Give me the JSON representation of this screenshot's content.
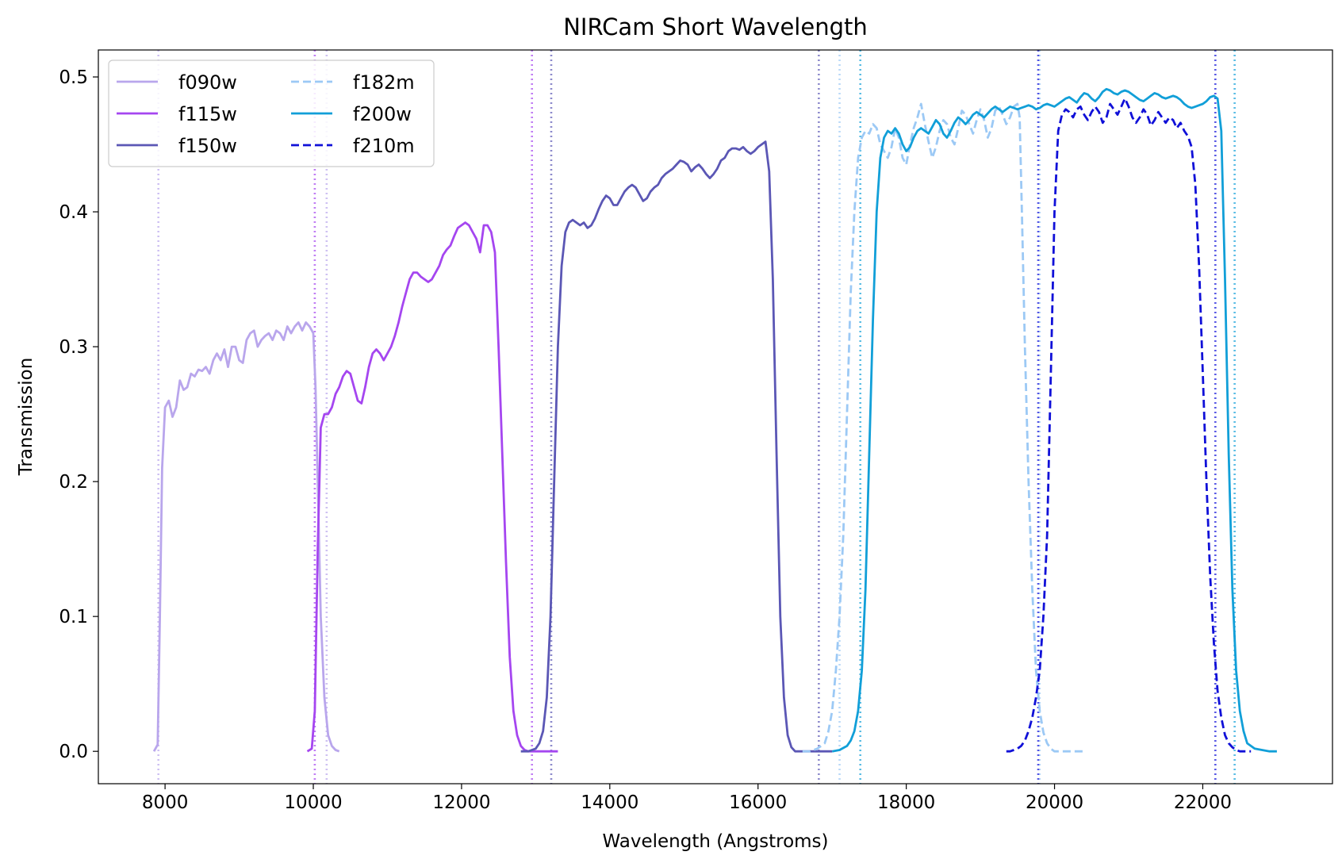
{
  "chart_data": {
    "type": "line",
    "title": "NIRCam Short Wavelength",
    "xlabel": "Wavelength (Angstroms)",
    "ylabel": "Transmission",
    "xlim": [
      7100,
      23750
    ],
    "ylim": [
      -0.024,
      0.52
    ],
    "xticks": [
      8000,
      10000,
      12000,
      14000,
      16000,
      18000,
      20000,
      22000
    ],
    "yticks": [
      0.0,
      0.1,
      0.2,
      0.3,
      0.4,
      0.5
    ],
    "xtick_labels": [
      "8000",
      "10000",
      "12000",
      "14000",
      "16000",
      "18000",
      "20000",
      "22000"
    ],
    "ytick_labels": [
      "0.0",
      "0.1",
      "0.2",
      "0.3",
      "0.4",
      "0.5"
    ],
    "grid": false,
    "legend": {
      "placement": "upper-left",
      "columns": 2
    },
    "series": [
      {
        "name": "f090w",
        "color": "#b9a6ec",
        "dash": "solid",
        "x": [
          7850,
          7900,
          7930,
          7960,
          8000,
          8050,
          8100,
          8150,
          8200,
          8250,
          8300,
          8350,
          8400,
          8450,
          8500,
          8550,
          8600,
          8650,
          8700,
          8750,
          8800,
          8850,
          8900,
          8950,
          9000,
          9050,
          9100,
          9150,
          9200,
          9250,
          9300,
          9350,
          9400,
          9450,
          9500,
          9550,
          9600,
          9650,
          9700,
          9750,
          9800,
          9850,
          9900,
          9950,
          10000,
          10030,
          10060,
          10100,
          10150,
          10200,
          10250,
          10300,
          10350
        ],
        "y": [
          0.0,
          0.005,
          0.1,
          0.21,
          0.255,
          0.26,
          0.248,
          0.255,
          0.275,
          0.268,
          0.27,
          0.28,
          0.278,
          0.283,
          0.282,
          0.285,
          0.28,
          0.29,
          0.295,
          0.29,
          0.298,
          0.285,
          0.3,
          0.3,
          0.29,
          0.288,
          0.305,
          0.31,
          0.312,
          0.3,
          0.305,
          0.308,
          0.31,
          0.305,
          0.312,
          0.31,
          0.305,
          0.315,
          0.31,
          0.315,
          0.318,
          0.312,
          0.318,
          0.315,
          0.31,
          0.27,
          0.2,
          0.1,
          0.04,
          0.012,
          0.004,
          0.001,
          0.0
        ]
      },
      {
        "name": "f115w",
        "color": "#a546f0",
        "dash": "solid",
        "x": [
          9920,
          9980,
          10020,
          10060,
          10100,
          10150,
          10200,
          10250,
          10300,
          10350,
          10400,
          10450,
          10500,
          10550,
          10600,
          10650,
          10700,
          10750,
          10800,
          10850,
          10900,
          10950,
          11000,
          11050,
          11100,
          11150,
          11200,
          11250,
          11300,
          11350,
          11400,
          11450,
          11500,
          11550,
          11600,
          11650,
          11700,
          11750,
          11800,
          11850,
          11900,
          11950,
          12000,
          12050,
          12100,
          12150,
          12200,
          12250,
          12300,
          12350,
          12400,
          12450,
          12500,
          12550,
          12600,
          12650,
          12700,
          12750,
          12800,
          12850,
          12900,
          12950,
          13000,
          13050,
          13100,
          13150,
          13200,
          13250,
          13300
        ],
        "y": [
          0.0,
          0.002,
          0.03,
          0.15,
          0.24,
          0.25,
          0.25,
          0.255,
          0.265,
          0.27,
          0.278,
          0.282,
          0.28,
          0.27,
          0.26,
          0.258,
          0.27,
          0.285,
          0.295,
          0.298,
          0.295,
          0.29,
          0.295,
          0.3,
          0.308,
          0.318,
          0.33,
          0.34,
          0.35,
          0.355,
          0.355,
          0.352,
          0.35,
          0.348,
          0.35,
          0.355,
          0.36,
          0.368,
          0.372,
          0.375,
          0.382,
          0.388,
          0.39,
          0.392,
          0.39,
          0.385,
          0.38,
          0.37,
          0.39,
          0.39,
          0.385,
          0.37,
          0.3,
          0.22,
          0.14,
          0.07,
          0.03,
          0.012,
          0.004,
          0.001,
          0.0,
          0.0,
          0.0,
          0.0,
          0.0,
          0.0,
          0.0,
          0.0,
          0.0
        ]
      },
      {
        "name": "f150w",
        "color": "#5b57b5",
        "dash": "solid",
        "x": [
          12800,
          12900,
          13000,
          13050,
          13100,
          13150,
          13200,
          13250,
          13300,
          13350,
          13400,
          13450,
          13500,
          13550,
          13600,
          13650,
          13700,
          13750,
          13800,
          13850,
          13900,
          13950,
          14000,
          14050,
          14100,
          14150,
          14200,
          14250,
          14300,
          14350,
          14400,
          14450,
          14500,
          14550,
          14600,
          14650,
          14700,
          14750,
          14800,
          14850,
          14900,
          14950,
          15000,
          15050,
          15100,
          15150,
          15200,
          15250,
          15300,
          15350,
          15400,
          15450,
          15500,
          15550,
          15600,
          15650,
          15700,
          15750,
          15800,
          15850,
          15900,
          15950,
          16000,
          16050,
          16100,
          16150,
          16200,
          16250,
          16300,
          16350,
          16400,
          16450,
          16500,
          16530,
          16560,
          16600,
          16650,
          16700,
          16750,
          16800,
          16850,
          16900,
          16950,
          17000
        ],
        "y": [
          0.0,
          0.0,
          0.002,
          0.006,
          0.015,
          0.04,
          0.1,
          0.2,
          0.3,
          0.36,
          0.385,
          0.392,
          0.394,
          0.392,
          0.39,
          0.392,
          0.388,
          0.39,
          0.395,
          0.402,
          0.408,
          0.412,
          0.41,
          0.405,
          0.405,
          0.41,
          0.415,
          0.418,
          0.42,
          0.418,
          0.413,
          0.408,
          0.41,
          0.415,
          0.418,
          0.42,
          0.425,
          0.428,
          0.43,
          0.432,
          0.435,
          0.438,
          0.437,
          0.435,
          0.43,
          0.433,
          0.435,
          0.432,
          0.428,
          0.425,
          0.428,
          0.432,
          0.438,
          0.44,
          0.445,
          0.447,
          0.447,
          0.446,
          0.448,
          0.445,
          0.443,
          0.445,
          0.448,
          0.45,
          0.452,
          0.43,
          0.35,
          0.22,
          0.1,
          0.04,
          0.012,
          0.003,
          0.0,
          0.0,
          0.0,
          0.0,
          0.0,
          0.0,
          0.0,
          0.0,
          0.0,
          0.0,
          0.0,
          0.0
        ]
      },
      {
        "name": "f182m",
        "color": "#9cc9f5",
        "dash": "dashed",
        "x": [
          16600,
          16700,
          16800,
          16900,
          16950,
          17000,
          17050,
          17100,
          17150,
          17200,
          17250,
          17300,
          17350,
          17400,
          17450,
          17500,
          17550,
          17600,
          17650,
          17700,
          17750,
          17800,
          17850,
          17900,
          17950,
          18000,
          18050,
          18100,
          18150,
          18200,
          18250,
          18300,
          18350,
          18400,
          18450,
          18500,
          18550,
          18600,
          18650,
          18700,
          18750,
          18800,
          18850,
          18900,
          18950,
          19000,
          19050,
          19100,
          19150,
          19200,
          19250,
          19300,
          19350,
          19400,
          19450,
          19500,
          19530,
          19560,
          19600,
          19650,
          19700,
          19750,
          19800,
          19850,
          19900,
          19950,
          20000,
          20100,
          20200,
          20300,
          20400
        ],
        "y": [
          0.0,
          0.0,
          0.002,
          0.006,
          0.015,
          0.03,
          0.06,
          0.1,
          0.16,
          0.25,
          0.34,
          0.4,
          0.44,
          0.455,
          0.46,
          0.458,
          0.465,
          0.462,
          0.45,
          0.445,
          0.44,
          0.448,
          0.462,
          0.455,
          0.44,
          0.435,
          0.45,
          0.462,
          0.47,
          0.48,
          0.465,
          0.452,
          0.44,
          0.448,
          0.46,
          0.468,
          0.465,
          0.455,
          0.45,
          0.462,
          0.475,
          0.472,
          0.465,
          0.458,
          0.468,
          0.476,
          0.468,
          0.455,
          0.462,
          0.475,
          0.478,
          0.472,
          0.465,
          0.47,
          0.478,
          0.48,
          0.47,
          0.4,
          0.3,
          0.2,
          0.12,
          0.06,
          0.03,
          0.014,
          0.006,
          0.002,
          0.0,
          0.0,
          0.0,
          0.0,
          0.0
        ]
      },
      {
        "name": "f200w",
        "color": "#119fd8",
        "dash": "solid",
        "x": [
          17000,
          17100,
          17200,
          17250,
          17300,
          17350,
          17400,
          17450,
          17500,
          17550,
          17600,
          17650,
          17700,
          17750,
          17800,
          17850,
          17900,
          17950,
          18000,
          18050,
          18100,
          18150,
          18200,
          18250,
          18300,
          18350,
          18400,
          18450,
          18500,
          18550,
          18600,
          18650,
          18700,
          18750,
          18800,
          18850,
          18900,
          18950,
          19000,
          19050,
          19100,
          19150,
          19200,
          19250,
          19300,
          19350,
          19400,
          19450,
          19500,
          19550,
          19600,
          19650,
          19700,
          19750,
          19800,
          19850,
          19900,
          19950,
          20000,
          20050,
          20100,
          20150,
          20200,
          20250,
          20300,
          20350,
          20400,
          20450,
          20500,
          20550,
          20600,
          20650,
          20700,
          20750,
          20800,
          20850,
          20900,
          20950,
          21000,
          21050,
          21100,
          21150,
          21200,
          21250,
          21300,
          21350,
          21400,
          21450,
          21500,
          21550,
          21600,
          21650,
          21700,
          21750,
          21800,
          21850,
          21900,
          21950,
          22000,
          22050,
          22100,
          22150,
          22200,
          22250,
          22300,
          22350,
          22400,
          22450,
          22500,
          22550,
          22600,
          22700,
          22800,
          22900,
          23000
        ],
        "y": [
          0.0,
          0.001,
          0.004,
          0.008,
          0.015,
          0.03,
          0.06,
          0.12,
          0.22,
          0.32,
          0.4,
          0.44,
          0.455,
          0.46,
          0.458,
          0.462,
          0.458,
          0.45,
          0.445,
          0.448,
          0.455,
          0.46,
          0.462,
          0.46,
          0.458,
          0.463,
          0.468,
          0.465,
          0.458,
          0.455,
          0.46,
          0.466,
          0.47,
          0.468,
          0.465,
          0.468,
          0.472,
          0.474,
          0.472,
          0.47,
          0.473,
          0.476,
          0.478,
          0.476,
          0.474,
          0.476,
          0.478,
          0.477,
          0.476,
          0.477,
          0.478,
          0.479,
          0.478,
          0.476,
          0.477,
          0.479,
          0.48,
          0.479,
          0.478,
          0.48,
          0.482,
          0.484,
          0.485,
          0.483,
          0.481,
          0.485,
          0.488,
          0.487,
          0.484,
          0.482,
          0.485,
          0.489,
          0.491,
          0.49,
          0.488,
          0.487,
          0.489,
          0.49,
          0.489,
          0.487,
          0.485,
          0.483,
          0.482,
          0.484,
          0.486,
          0.488,
          0.487,
          0.485,
          0.484,
          0.485,
          0.486,
          0.485,
          0.483,
          0.48,
          0.478,
          0.477,
          0.478,
          0.479,
          0.48,
          0.482,
          0.485,
          0.486,
          0.484,
          0.46,
          0.35,
          0.22,
          0.12,
          0.06,
          0.03,
          0.015,
          0.006,
          0.002,
          0.001,
          0.0,
          0.0
        ]
      },
      {
        "name": "f210m",
        "color": "#1010d8",
        "dash": "dashed",
        "x": [
          19350,
          19400,
          19450,
          19500,
          19550,
          19600,
          19650,
          19700,
          19750,
          19800,
          19850,
          19900,
          19950,
          20000,
          20050,
          20100,
          20150,
          20200,
          20250,
          20300,
          20350,
          20400,
          20450,
          20500,
          20550,
          20600,
          20650,
          20700,
          20750,
          20800,
          20850,
          20900,
          20950,
          21000,
          21050,
          21100,
          21150,
          21200,
          21250,
          21300,
          21350,
          21400,
          21450,
          21500,
          21550,
          21600,
          21650,
          21700,
          21750,
          21800,
          21850,
          21900,
          21950,
          22000,
          22050,
          22100,
          22150,
          22200,
          22250,
          22300,
          22350,
          22400,
          22450,
          22500,
          22550,
          22600,
          22650
        ],
        "y": [
          0.0,
          0.0,
          0.001,
          0.002,
          0.004,
          0.008,
          0.015,
          0.025,
          0.04,
          0.06,
          0.1,
          0.16,
          0.28,
          0.4,
          0.46,
          0.472,
          0.476,
          0.474,
          0.47,
          0.476,
          0.478,
          0.472,
          0.468,
          0.474,
          0.478,
          0.474,
          0.466,
          0.47,
          0.48,
          0.476,
          0.472,
          0.478,
          0.484,
          0.478,
          0.47,
          0.466,
          0.47,
          0.476,
          0.472,
          0.464,
          0.468,
          0.474,
          0.47,
          0.466,
          0.47,
          0.468,
          0.462,
          0.466,
          0.46,
          0.456,
          0.448,
          0.42,
          0.36,
          0.28,
          0.2,
          0.13,
          0.08,
          0.045,
          0.025,
          0.012,
          0.006,
          0.003,
          0.001,
          0.0,
          0.0,
          0.0,
          0.0
        ]
      }
    ],
    "reference_lines": [
      {
        "series": "f090w",
        "x": [
          7910,
          10180
        ]
      },
      {
        "series": "f115w",
        "x": [
          10020,
          12950
        ]
      },
      {
        "series": "f150w",
        "x": [
          13210,
          16820
        ]
      },
      {
        "series": "f182m",
        "x": [
          17100,
          19800
        ]
      },
      {
        "series": "f200w",
        "x": [
          17380,
          22430
        ]
      },
      {
        "series": "f210m",
        "x": [
          19780,
          22170
        ]
      }
    ]
  }
}
